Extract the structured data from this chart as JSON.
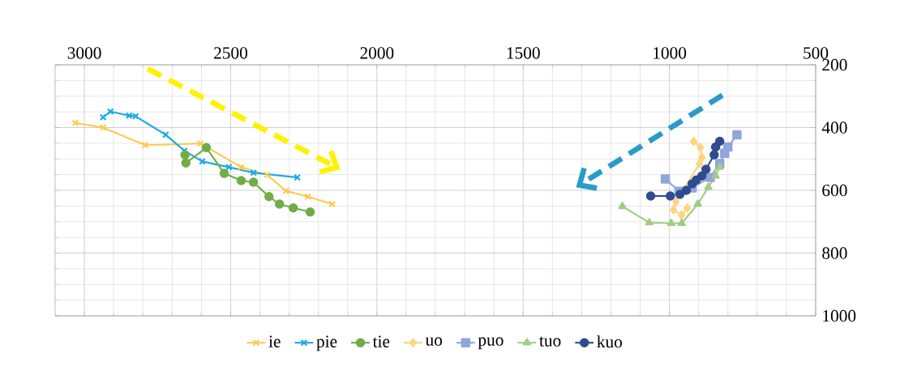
{
  "chart_data": {
    "type": "line",
    "xlim": [
      3100,
      500
    ],
    "ylim": [
      1000,
      200
    ],
    "xticks": [
      3000,
      2500,
      2000,
      1500,
      1000,
      500
    ],
    "yticks": [
      200,
      400,
      600,
      800,
      1000
    ],
    "grid": true,
    "legend": "bottom",
    "line_style": "solid",
    "series": [
      {
        "name": "ie",
        "color": "#ffc94d",
        "marker": "cross",
        "x": [
          3031,
          2936,
          2792,
          2603,
          2464,
          2375,
          2311,
          2236,
          2153
        ],
        "values": [
          385,
          400,
          456,
          451,
          526,
          551,
          602,
          620,
          644
        ]
      },
      {
        "name": "pie",
        "color": "#19a9e8",
        "marker": "cross",
        "x": [
          2936,
          2911,
          2847,
          2825,
          2722,
          2658,
          2597,
          2506,
          2422,
          2272
        ],
        "values": [
          367,
          349,
          362,
          364,
          423,
          474,
          508,
          526,
          544,
          559
        ]
      },
      {
        "name": "tie",
        "color": "#70ad47",
        "marker": "circle",
        "x": [
          2656,
          2653,
          2583,
          2522,
          2464,
          2422,
          2369,
          2333,
          2286,
          2228
        ],
        "values": [
          487,
          513,
          464,
          546,
          569,
          574,
          620,
          644,
          656,
          669
        ]
      },
      {
        "name": "uo",
        "color": "#ffd480",
        "marker": "diamond",
        "x": [
          917,
          894,
          889,
          897,
          978,
          986,
          958,
          939
        ],
        "values": [
          444,
          464,
          495,
          515,
          636,
          662,
          679,
          656
        ]
      },
      {
        "name": "puo",
        "color": "#8fa5dc",
        "marker": "square",
        "x": [
          769,
          800,
          811,
          828,
          861,
          922,
          967,
          1014
        ],
        "values": [
          423,
          462,
          482,
          515,
          559,
          592,
          603,
          564
        ]
      },
      {
        "name": "tuo",
        "color": "#a0cd84",
        "marker": "triangle",
        "x": [
          828,
          842,
          867,
          903,
          958,
          994,
          1069,
          1161
        ],
        "values": [
          526,
          554,
          590,
          644,
          705,
          705,
          703,
          651
        ]
      },
      {
        "name": "kuo",
        "color": "#2e4d8f",
        "marker": "circle",
        "x": [
          828,
          842,
          847,
          875,
          889,
          908,
          922,
          942,
          964,
          997,
          1064
        ],
        "values": [
          444,
          462,
          487,
          533,
          554,
          567,
          579,
          600,
          613,
          618,
          618
        ]
      }
    ]
  }
}
